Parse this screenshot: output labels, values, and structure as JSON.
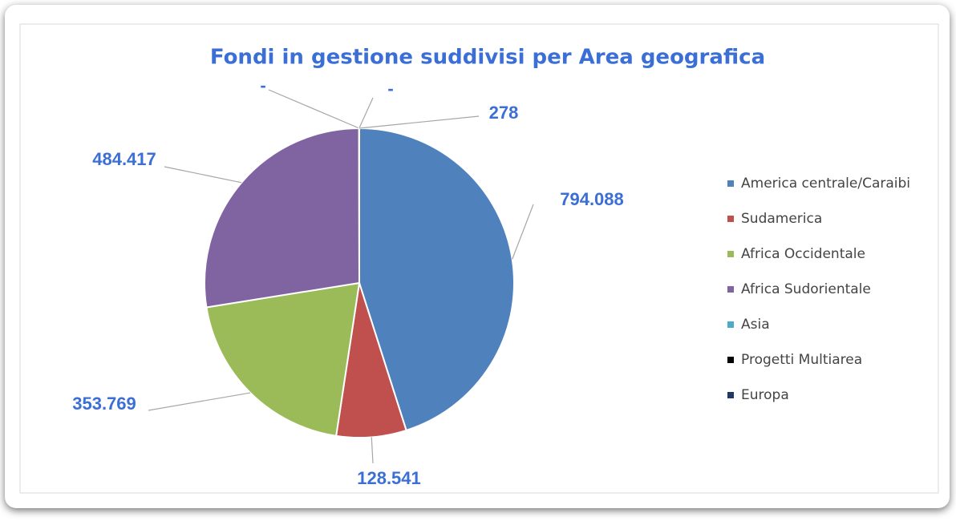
{
  "chart_data": {
    "type": "pie",
    "title": "Fondi in gestione suddivisi per Area geografica",
    "categories": [
      "America centrale/Caraibi",
      "Sudamerica",
      "Africa Occidentale",
      "Africa Sudorientale",
      "Asia",
      "Progetti Multiarea",
      "Europa"
    ],
    "values": [
      794088,
      128541,
      353769,
      484417,
      0,
      0,
      278
    ],
    "value_labels": [
      "794.088",
      "128.541",
      "353.769",
      "484.417",
      "-",
      "-",
      "278"
    ],
    "colors": [
      "#4f81bd",
      "#c0504d",
      "#9bbb59",
      "#8064a2",
      "#4bacc6",
      "#000000",
      "#1f3864"
    ],
    "legend": "right"
  }
}
